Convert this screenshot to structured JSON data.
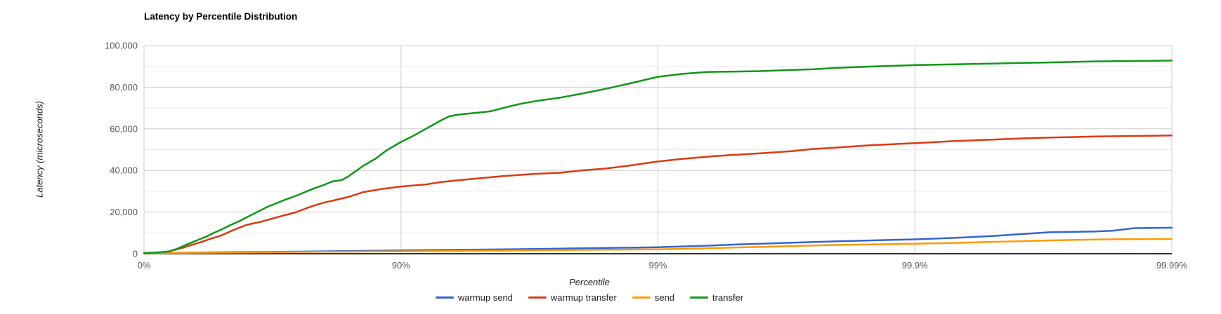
{
  "chart_data": {
    "type": "line",
    "title": "Latency by Percentile Distribution",
    "xlabel": "Percentile",
    "ylabel": "Latency (microseconds)",
    "x_scale": "logarithmic percentile axis: position = log10(100/(100-p)), 0 to 4 nines",
    "x_ticks": [
      {
        "label": "0%",
        "nines": 0
      },
      {
        "label": "90%",
        "nines": 1
      },
      {
        "label": "99%",
        "nines": 2
      },
      {
        "label": "99.9%",
        "nines": 3
      },
      {
        "label": "99.99%",
        "nines": 4
      }
    ],
    "y_ticks": [
      0,
      20000,
      40000,
      60000,
      80000,
      100000
    ],
    "y_minor_step": 10000,
    "ylim": [
      0,
      100000
    ],
    "grid": true,
    "legend_position": "bottom",
    "colors": {
      "major_gridline": "#cccccc",
      "minor_gridline": "#ebebeb",
      "baseline": "#333333",
      "tick_label": "#565656"
    },
    "series": [
      {
        "name": "warmup send",
        "color": "#3366CC",
        "points": [
          [
            0,
            250
          ],
          [
            25,
            450
          ],
          [
            50,
            700
          ],
          [
            70,
            950
          ],
          [
            80,
            1150
          ],
          [
            90,
            1600
          ],
          [
            95,
            2000
          ],
          [
            97,
            2300
          ],
          [
            98,
            2600
          ],
          [
            99,
            3100
          ],
          [
            99.3,
            3700
          ],
          [
            99.5,
            4400
          ],
          [
            99.6,
            4800
          ],
          [
            99.7,
            5300
          ],
          [
            99.8,
            6000
          ],
          [
            99.9,
            6900
          ],
          [
            99.93,
            7600
          ],
          [
            99.95,
            8500
          ],
          [
            99.96,
            9300
          ],
          [
            99.97,
            10300
          ],
          [
            99.98,
            10700
          ],
          [
            99.983,
            11000
          ],
          [
            99.986,
            12300
          ],
          [
            99.99,
            12500
          ]
        ]
      },
      {
        "name": "warmup transfer",
        "color": "#DC3912",
        "points": [
          [
            0,
            300
          ],
          [
            10,
            500
          ],
          [
            15,
            700
          ],
          [
            20,
            1100
          ],
          [
            25,
            2000
          ],
          [
            30,
            3000
          ],
          [
            35,
            4300
          ],
          [
            40,
            5600
          ],
          [
            45,
            7200
          ],
          [
            50,
            8800
          ],
          [
            55,
            11300
          ],
          [
            60,
            13800
          ],
          [
            65,
            15400
          ],
          [
            70,
            17700
          ],
          [
            74,
            19700
          ],
          [
            78,
            23000
          ],
          [
            80,
            24500
          ],
          [
            82,
            25800
          ],
          [
            84,
            27300
          ],
          [
            86,
            29600
          ],
          [
            88,
            31000
          ],
          [
            90,
            32300
          ],
          [
            92,
            33300
          ],
          [
            93,
            34400
          ],
          [
            94,
            35300
          ],
          [
            95,
            36200
          ],
          [
            96,
            37300
          ],
          [
            97,
            38400
          ],
          [
            97.6,
            38900
          ],
          [
            98,
            40000
          ],
          [
            98.4,
            40900
          ],
          [
            98.7,
            42300
          ],
          [
            99,
            44300
          ],
          [
            99.2,
            45600
          ],
          [
            99.4,
            46900
          ],
          [
            99.5,
            47500
          ],
          [
            99.6,
            48200
          ],
          [
            99.7,
            49300
          ],
          [
            99.75,
            50300
          ],
          [
            99.8,
            51000
          ],
          [
            99.85,
            52100
          ],
          [
            99.9,
            53100
          ],
          [
            99.93,
            54100
          ],
          [
            99.95,
            54800
          ],
          [
            99.96,
            55300
          ],
          [
            99.97,
            55800
          ],
          [
            99.98,
            56300
          ],
          [
            99.99,
            56800
          ]
        ]
      },
      {
        "name": "send",
        "color": "#FF9900",
        "points": [
          [
            0,
            200
          ],
          [
            25,
            350
          ],
          [
            50,
            550
          ],
          [
            70,
            750
          ],
          [
            80,
            900
          ],
          [
            90,
            1150
          ],
          [
            95,
            1450
          ],
          [
            97,
            1650
          ],
          [
            98,
            1850
          ],
          [
            99,
            2100
          ],
          [
            99.3,
            2500
          ],
          [
            99.5,
            3000
          ],
          [
            99.6,
            3300
          ],
          [
            99.7,
            3700
          ],
          [
            99.8,
            4200
          ],
          [
            99.9,
            4800
          ],
          [
            99.93,
            5200
          ],
          [
            99.95,
            5700
          ],
          [
            99.96,
            6000
          ],
          [
            99.97,
            6400
          ],
          [
            99.98,
            6800
          ],
          [
            99.985,
            7000
          ],
          [
            99.99,
            7100
          ]
        ]
      },
      {
        "name": "transfer",
        "color": "#109618",
        "points": [
          [
            0,
            350
          ],
          [
            10,
            600
          ],
          [
            15,
            800
          ],
          [
            20,
            1100
          ],
          [
            25,
            2200
          ],
          [
            30,
            3800
          ],
          [
            35,
            5500
          ],
          [
            40,
            7200
          ],
          [
            43,
            8300
          ],
          [
            46,
            9800
          ],
          [
            50,
            11600
          ],
          [
            54,
            13800
          ],
          [
            58,
            16000
          ],
          [
            62,
            18800
          ],
          [
            67,
            22600
          ],
          [
            71,
            25400
          ],
          [
            75,
            28300
          ],
          [
            78,
            31200
          ],
          [
            80,
            33000
          ],
          [
            81.5,
            34700
          ],
          [
            83,
            35400
          ],
          [
            84,
            37200
          ],
          [
            86,
            42300
          ],
          [
            87.5,
            45800
          ],
          [
            88.6,
            49600
          ],
          [
            90,
            53700
          ],
          [
            91,
            56500
          ],
          [
            92,
            60000
          ],
          [
            93,
            64000
          ],
          [
            93.5,
            66000
          ],
          [
            94,
            66800
          ],
          [
            95,
            67800
          ],
          [
            95.5,
            68400
          ],
          [
            96,
            70000
          ],
          [
            96.5,
            71800
          ],
          [
            97,
            73300
          ],
          [
            97.6,
            75000
          ],
          [
            98,
            76800
          ],
          [
            98.4,
            79200
          ],
          [
            98.7,
            81700
          ],
          [
            99,
            85000
          ],
          [
            99.2,
            86400
          ],
          [
            99.35,
            87300
          ],
          [
            99.5,
            87500
          ],
          [
            99.6,
            87700
          ],
          [
            99.7,
            88300
          ],
          [
            99.75,
            88600
          ],
          [
            99.8,
            89300
          ],
          [
            99.85,
            89900
          ],
          [
            99.9,
            90600
          ],
          [
            99.93,
            91000
          ],
          [
            99.95,
            91300
          ],
          [
            99.96,
            91600
          ],
          [
            99.97,
            91900
          ],
          [
            99.98,
            92400
          ],
          [
            99.99,
            92800
          ]
        ]
      }
    ]
  }
}
